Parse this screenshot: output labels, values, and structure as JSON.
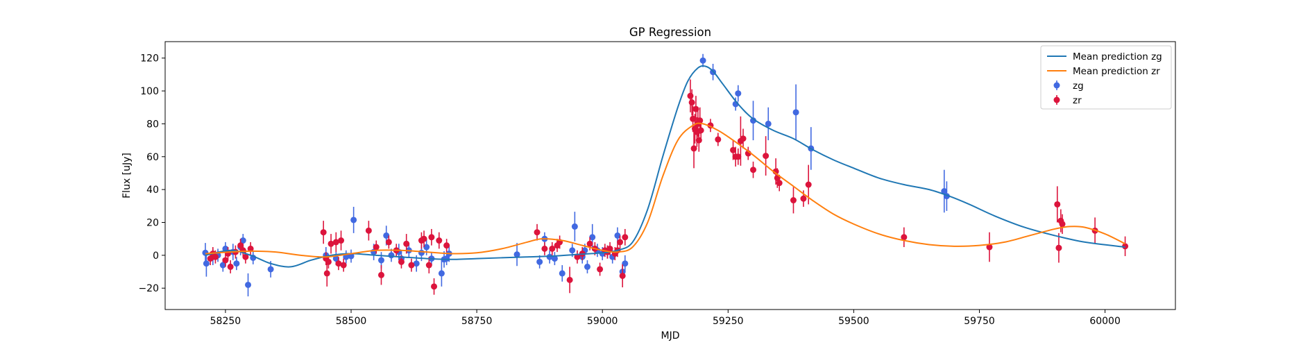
{
  "chart_data": {
    "type": "scatter",
    "title": "GP Regression",
    "xlabel": "MJD",
    "ylabel": "Flux [uJy]",
    "xlim": [
      58130,
      60140
    ],
    "ylim": [
      -33,
      130
    ],
    "xticks": [
      58250,
      58500,
      58750,
      59000,
      59250,
      59500,
      59750,
      60000
    ],
    "yticks": [
      -20,
      0,
      20,
      40,
      60,
      80,
      100,
      120
    ],
    "grid": false,
    "legend_position": "top-right",
    "colors": {
      "zg_line": "#1f77b4",
      "zr_line": "#ff7f0e",
      "zg_points": "#4169e1",
      "zr_points": "#dc143c"
    },
    "lines": [
      {
        "name": "Mean prediction zg",
        "color": "#1f77b4",
        "x": [
          58210,
          58260,
          58300,
          58340,
          58380,
          58420,
          58460,
          58500,
          58550,
          58600,
          58650,
          58700,
          58750,
          58800,
          58850,
          58900,
          58950,
          59000,
          59030,
          59060,
          59090,
          59120,
          59150,
          59170,
          59190,
          59205,
          59220,
          59240,
          59270,
          59300,
          59340,
          59380,
          59420,
          59460,
          59500,
          59550,
          59600,
          59650,
          59690,
          59730,
          59780,
          59840,
          59900,
          59960,
          60040
        ],
        "y": [
          0,
          3,
          0,
          -5,
          -7,
          -3,
          0,
          1,
          0,
          -1,
          -2,
          -2.5,
          -2,
          -1.5,
          -1,
          -0.5,
          0.5,
          1.5,
          3,
          8,
          28,
          60,
          90,
          106,
          114,
          115,
          112,
          104,
          92,
          83,
          76,
          71,
          64,
          58,
          53,
          47,
          43,
          40,
          36,
          31,
          24,
          17,
          12,
          8,
          5
        ]
      },
      {
        "name": "Mean prediction zr",
        "color": "#ff7f0e",
        "x": [
          58210,
          58260,
          58300,
          58350,
          58400,
          58450,
          58500,
          58550,
          58600,
          58650,
          58700,
          58750,
          58800,
          58850,
          58880,
          58920,
          58960,
          59000,
          59030,
          59060,
          59090,
          59120,
          59150,
          59180,
          59200,
          59230,
          59260,
          59300,
          59340,
          59380,
          59420,
          59460,
          59500,
          59550,
          59600,
          59650,
          59700,
          59750,
          59800,
          59850,
          59900,
          59930,
          59960,
          60000,
          60040
        ],
        "y": [
          1,
          2,
          2.5,
          2,
          0,
          -1,
          1,
          3,
          3,
          2,
          1,
          1.5,
          4,
          8,
          10,
          9,
          6,
          3,
          2,
          5,
          20,
          48,
          70,
          79,
          80,
          76,
          70,
          61,
          51,
          42,
          33,
          25,
          19,
          13,
          9,
          6.5,
          5.5,
          6,
          8,
          12,
          16,
          17.5,
          17,
          13,
          7
        ]
      }
    ],
    "series": [
      {
        "name": "zg",
        "color": "#4169e1",
        "points": [
          [
            58210,
            1.5,
            6
          ],
          [
            58212,
            -5,
            8
          ],
          [
            58225,
            -1,
            5
          ],
          [
            58235,
            0,
            4
          ],
          [
            58245,
            -6,
            4
          ],
          [
            58250,
            4,
            4
          ],
          [
            58265,
            2,
            5
          ],
          [
            58272,
            -5,
            4
          ],
          [
            58280,
            5,
            5
          ],
          [
            58285,
            9,
            4
          ],
          [
            58295,
            -18,
            7
          ],
          [
            58305,
            -1.5,
            4
          ],
          [
            58340,
            -8.5,
            5
          ],
          [
            58450,
            0,
            5
          ],
          [
            58470,
            -2,
            4
          ],
          [
            58490,
            -1,
            4
          ],
          [
            58500,
            -0.5,
            4
          ],
          [
            58505,
            21.5,
            8
          ],
          [
            58545,
            2,
            5
          ],
          [
            58560,
            -3,
            5
          ],
          [
            58570,
            12,
            6
          ],
          [
            58580,
            0,
            4
          ],
          [
            58595,
            2,
            5
          ],
          [
            58600,
            -2,
            4
          ],
          [
            58615,
            3,
            4
          ],
          [
            58630,
            -5,
            5
          ],
          [
            58640,
            1.5,
            5
          ],
          [
            58650,
            5,
            5
          ],
          [
            58660,
            -2,
            4
          ],
          [
            58680,
            -11,
            8
          ],
          [
            58685,
            -2.5,
            5
          ],
          [
            58690,
            -2,
            4
          ],
          [
            58695,
            1,
            5
          ],
          [
            58830,
            0.5,
            7
          ],
          [
            58875,
            -4,
            4
          ],
          [
            58885,
            10,
            4
          ],
          [
            58895,
            -1,
            4
          ],
          [
            58905,
            -2,
            4
          ],
          [
            58920,
            -11,
            5
          ],
          [
            58940,
            3,
            4
          ],
          [
            58945,
            17.5,
            9
          ],
          [
            58960,
            -1,
            4
          ],
          [
            58965,
            3,
            4
          ],
          [
            58970,
            -7,
            4
          ],
          [
            58980,
            11,
            8
          ],
          [
            58990,
            3,
            4
          ],
          [
            59000,
            1,
            4
          ],
          [
            59010,
            2,
            4
          ],
          [
            59020,
            -1,
            4
          ],
          [
            59030,
            12,
            5
          ],
          [
            59040,
            -10,
            5
          ],
          [
            59045,
            -5,
            5
          ],
          [
            59200,
            118.5,
            4
          ],
          [
            59220,
            111.5,
            5
          ],
          [
            59265,
            92,
            4
          ],
          [
            59270,
            98.5,
            5
          ],
          [
            59300,
            82,
            12
          ],
          [
            59330,
            80,
            10
          ],
          [
            59385,
            87,
            17
          ],
          [
            59415,
            65,
            13
          ],
          [
            59680,
            39,
            13
          ],
          [
            59685,
            36,
            9
          ]
        ]
      },
      {
        "name": "zr",
        "color": "#dc143c",
        "points": [
          [
            58220,
            -2,
            4
          ],
          [
            58225,
            1,
            4
          ],
          [
            58230,
            -1,
            4
          ],
          [
            58250,
            -3,
            4
          ],
          [
            58255,
            1,
            4
          ],
          [
            58260,
            -7,
            4
          ],
          [
            58270,
            2,
            4
          ],
          [
            58280,
            6,
            4
          ],
          [
            58285,
            3,
            4
          ],
          [
            58290,
            -1,
            4
          ],
          [
            58300,
            4,
            4
          ],
          [
            58445,
            14,
            7
          ],
          [
            58450,
            -2,
            4
          ],
          [
            58452,
            -11,
            8
          ],
          [
            58455,
            -4,
            4
          ],
          [
            58460,
            7,
            6
          ],
          [
            58470,
            8,
            6
          ],
          [
            58475,
            -5,
            4
          ],
          [
            58480,
            9,
            6
          ],
          [
            58485,
            -6,
            4
          ],
          [
            58535,
            15,
            6
          ],
          [
            58550,
            5,
            4
          ],
          [
            58560,
            -12,
            6
          ],
          [
            58575,
            8,
            4
          ],
          [
            58590,
            3,
            4
          ],
          [
            58600,
            -4,
            4
          ],
          [
            58610,
            7,
            6
          ],
          [
            58620,
            -6,
            4
          ],
          [
            58640,
            9,
            5
          ],
          [
            58645,
            10,
            5
          ],
          [
            58655,
            -6,
            5
          ],
          [
            58660,
            11,
            5
          ],
          [
            58665,
            -19,
            5
          ],
          [
            58675,
            9,
            5
          ],
          [
            58690,
            6,
            4
          ],
          [
            58870,
            14,
            5
          ],
          [
            58885,
            4,
            4
          ],
          [
            58900,
            4,
            4
          ],
          [
            58910,
            6,
            4
          ],
          [
            58915,
            8,
            4
          ],
          [
            58935,
            -15,
            8
          ],
          [
            58950,
            -1,
            4
          ],
          [
            58960,
            1,
            4
          ],
          [
            58975,
            7,
            4
          ],
          [
            58985,
            4,
            4
          ],
          [
            58995,
            -8.5,
            4
          ],
          [
            59005,
            3,
            4
          ],
          [
            59010,
            2,
            4
          ],
          [
            59015,
            4,
            4
          ],
          [
            59025,
            1,
            4
          ],
          [
            59030,
            3,
            4
          ],
          [
            59035,
            8,
            4
          ],
          [
            59040,
            -12.5,
            7
          ],
          [
            59045,
            11,
            5
          ],
          [
            59175,
            97,
            10
          ],
          [
            59178,
            93,
            8
          ],
          [
            59180,
            83,
            8
          ],
          [
            59182,
            65,
            12
          ],
          [
            59184,
            77,
            9
          ],
          [
            59186,
            89,
            8
          ],
          [
            59188,
            75,
            9
          ],
          [
            59190,
            80,
            8
          ],
          [
            59192,
            70,
            7
          ],
          [
            59194,
            82,
            8
          ],
          [
            59196,
            76,
            7
          ],
          [
            59215,
            79,
            4
          ],
          [
            59230,
            70.5,
            4
          ],
          [
            59260,
            64,
            6
          ],
          [
            59265,
            60,
            6
          ],
          [
            59270,
            60,
            5
          ],
          [
            59275,
            69.5,
            15
          ],
          [
            59280,
            71,
            6
          ],
          [
            59290,
            62,
            4
          ],
          [
            59300,
            52,
            5
          ],
          [
            59325,
            60.5,
            12
          ],
          [
            59345,
            51,
            8
          ],
          [
            59348,
            47,
            6
          ],
          [
            59352,
            44,
            5
          ],
          [
            59380,
            33.5,
            8
          ],
          [
            59400,
            34.5,
            5
          ],
          [
            59410,
            43,
            12
          ],
          [
            59600,
            11,
            6
          ],
          [
            59770,
            5,
            9
          ],
          [
            59905,
            31,
            11
          ],
          [
            59908,
            4.5,
            9
          ],
          [
            59912,
            21,
            7
          ],
          [
            59915,
            19,
            6
          ],
          [
            59980,
            15,
            8
          ],
          [
            60040,
            5.5,
            6
          ]
        ]
      }
    ],
    "legend": [
      {
        "label": "Mean prediction zg",
        "kind": "line",
        "color": "#1f77b4"
      },
      {
        "label": "Mean prediction zr",
        "kind": "line",
        "color": "#ff7f0e"
      },
      {
        "label": "zg",
        "kind": "marker",
        "color": "#4169e1"
      },
      {
        "label": "zr",
        "kind": "marker",
        "color": "#dc143c"
      }
    ]
  }
}
